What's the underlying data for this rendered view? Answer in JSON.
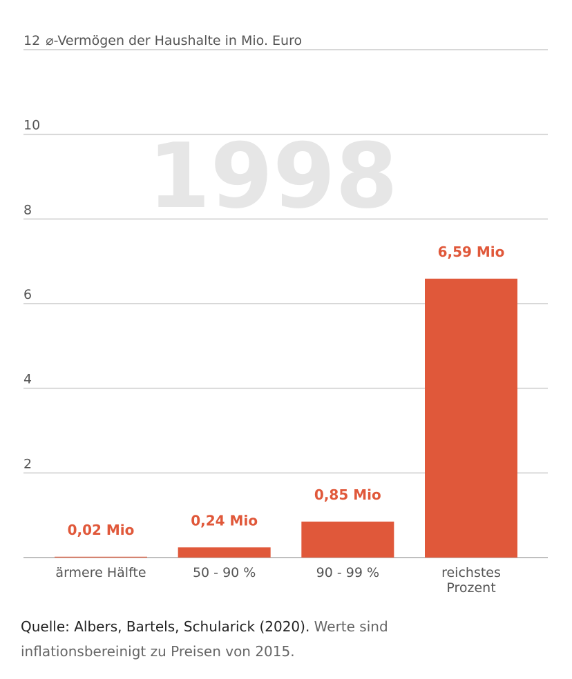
{
  "chart_data": {
    "type": "bar",
    "y_label": "⌀-Vermögen der Haushalte in Mio. Euro",
    "annotation": "1998",
    "categories": [
      "ärmere Hälfte",
      "50 - 90 %",
      "90 - 99 %",
      "reichstes Prozent"
    ],
    "values": [
      0.02,
      0.24,
      0.85,
      6.59
    ],
    "value_labels": [
      "0,02 Mio",
      "0,24 Mio",
      "0,85 Mio",
      "6,59 Mio"
    ],
    "color": "#e0583a",
    "ylim": [
      0,
      12
    ],
    "yticks": [
      2,
      4,
      6,
      8,
      10,
      12
    ],
    "grid": true
  },
  "source": {
    "citation": "Quelle: Albers, Bartels, Schularick (2020).",
    "note": "Werte sind inflationsbereinigt zu Preisen von 2015."
  }
}
